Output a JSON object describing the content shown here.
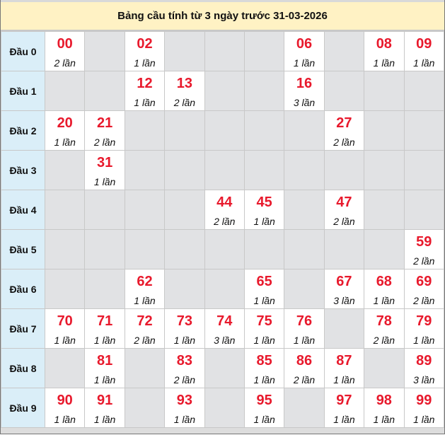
{
  "title": "Bảng cầu tính từ 3 ngày trước 31-03-2026",
  "colors": {
    "number": "#e8192c",
    "head_bg": "#daeef8",
    "title_bg": "#fff2c4",
    "empty_bg": "#e1e2e4"
  },
  "rows": [
    {
      "label": "Đầu 0",
      "cells": [
        {
          "num": "00",
          "count": "2 lần"
        },
        null,
        {
          "num": "02",
          "count": "1 lần"
        },
        null,
        null,
        null,
        {
          "num": "06",
          "count": "1 lần"
        },
        null,
        {
          "num": "08",
          "count": "1 lần"
        },
        {
          "num": "09",
          "count": "1 lần"
        }
      ]
    },
    {
      "label": "Đầu 1",
      "cells": [
        null,
        null,
        {
          "num": "12",
          "count": "1 lần"
        },
        {
          "num": "13",
          "count": "2 lần"
        },
        null,
        null,
        {
          "num": "16",
          "count": "3 lần"
        },
        null,
        null,
        null
      ]
    },
    {
      "label": "Đầu 2",
      "cells": [
        {
          "num": "20",
          "count": "1 lần"
        },
        {
          "num": "21",
          "count": "2 lần"
        },
        null,
        null,
        null,
        null,
        null,
        {
          "num": "27",
          "count": "2 lần"
        },
        null,
        null
      ]
    },
    {
      "label": "Đầu 3",
      "cells": [
        null,
        {
          "num": "31",
          "count": "1 lần"
        },
        null,
        null,
        null,
        null,
        null,
        null,
        null,
        null
      ]
    },
    {
      "label": "Đầu 4",
      "cells": [
        null,
        null,
        null,
        null,
        {
          "num": "44",
          "count": "2 lần"
        },
        {
          "num": "45",
          "count": "1 lần"
        },
        null,
        {
          "num": "47",
          "count": "2 lần"
        },
        null,
        null
      ]
    },
    {
      "label": "Đầu 5",
      "cells": [
        null,
        null,
        null,
        null,
        null,
        null,
        null,
        null,
        null,
        {
          "num": "59",
          "count": "2 lần"
        }
      ]
    },
    {
      "label": "Đầu 6",
      "cells": [
        null,
        null,
        {
          "num": "62",
          "count": "1 lần"
        },
        null,
        null,
        {
          "num": "65",
          "count": "1 lần"
        },
        null,
        {
          "num": "67",
          "count": "3 lần"
        },
        {
          "num": "68",
          "count": "1 lần"
        },
        {
          "num": "69",
          "count": "2 lần"
        }
      ]
    },
    {
      "label": "Đầu 7",
      "cells": [
        {
          "num": "70",
          "count": "1 lần"
        },
        {
          "num": "71",
          "count": "1 lần"
        },
        {
          "num": "72",
          "count": "2 lần"
        },
        {
          "num": "73",
          "count": "1 lần"
        },
        {
          "num": "74",
          "count": "3 lần"
        },
        {
          "num": "75",
          "count": "1 lần"
        },
        {
          "num": "76",
          "count": "1 lần"
        },
        null,
        {
          "num": "78",
          "count": "2 lần"
        },
        {
          "num": "79",
          "count": "1 lần"
        }
      ]
    },
    {
      "label": "Đầu 8",
      "cells": [
        null,
        {
          "num": "81",
          "count": "1 lần"
        },
        null,
        {
          "num": "83",
          "count": "2 lần"
        },
        null,
        {
          "num": "85",
          "count": "1 lần"
        },
        {
          "num": "86",
          "count": "2 lần"
        },
        {
          "num": "87",
          "count": "1 lần"
        },
        null,
        {
          "num": "89",
          "count": "3 lần"
        }
      ]
    },
    {
      "label": "Đầu 9",
      "cells": [
        {
          "num": "90",
          "count": "1 lần"
        },
        {
          "num": "91",
          "count": "1 lần"
        },
        null,
        {
          "num": "93",
          "count": "1 lần"
        },
        null,
        {
          "num": "95",
          "count": "1 lần"
        },
        null,
        {
          "num": "97",
          "count": "1 lần"
        },
        {
          "num": "98",
          "count": "1 lần"
        },
        {
          "num": "99",
          "count": "1 lần"
        }
      ]
    }
  ]
}
